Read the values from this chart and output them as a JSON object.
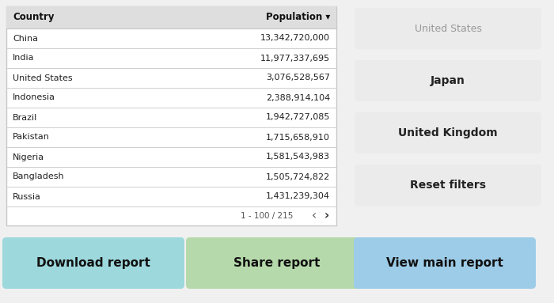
{
  "background_color": "#f0f0f0",
  "table_header": [
    "Country",
    "Population ▾"
  ],
  "table_rows": [
    [
      "China",
      "13,342,720,000"
    ],
    [
      "India",
      "11,977,337,695"
    ],
    [
      "United States",
      "3,076,528,567"
    ],
    [
      "Indonesia",
      "2,388,914,104"
    ],
    [
      "Brazil",
      "1,942,727,085"
    ],
    [
      "Pakistan",
      "1,715,658,910"
    ],
    [
      "Nigeria",
      "1,581,543,983"
    ],
    [
      "Bangladesh",
      "1,505,724,822"
    ],
    [
      "Russia",
      "1,431,239,304"
    ]
  ],
  "pagination": "1 - 100 / 215",
  "filter_buttons": [
    "United States",
    "Japan",
    "United Kingdom",
    "Reset filters"
  ],
  "filter_button_color": "#e4e4e4",
  "action_buttons": [
    {
      "label": "Download report",
      "color": "#9dd8dc"
    },
    {
      "label": "Share report",
      "color": "#b5d9aa"
    },
    {
      "label": "View main report",
      "color": "#9dcce8"
    }
  ],
  "action_button_text_color": "#111111",
  "table_header_bg": "#dedede",
  "table_border_color": "#c8c8c8",
  "table_row_bg": "#ffffff"
}
